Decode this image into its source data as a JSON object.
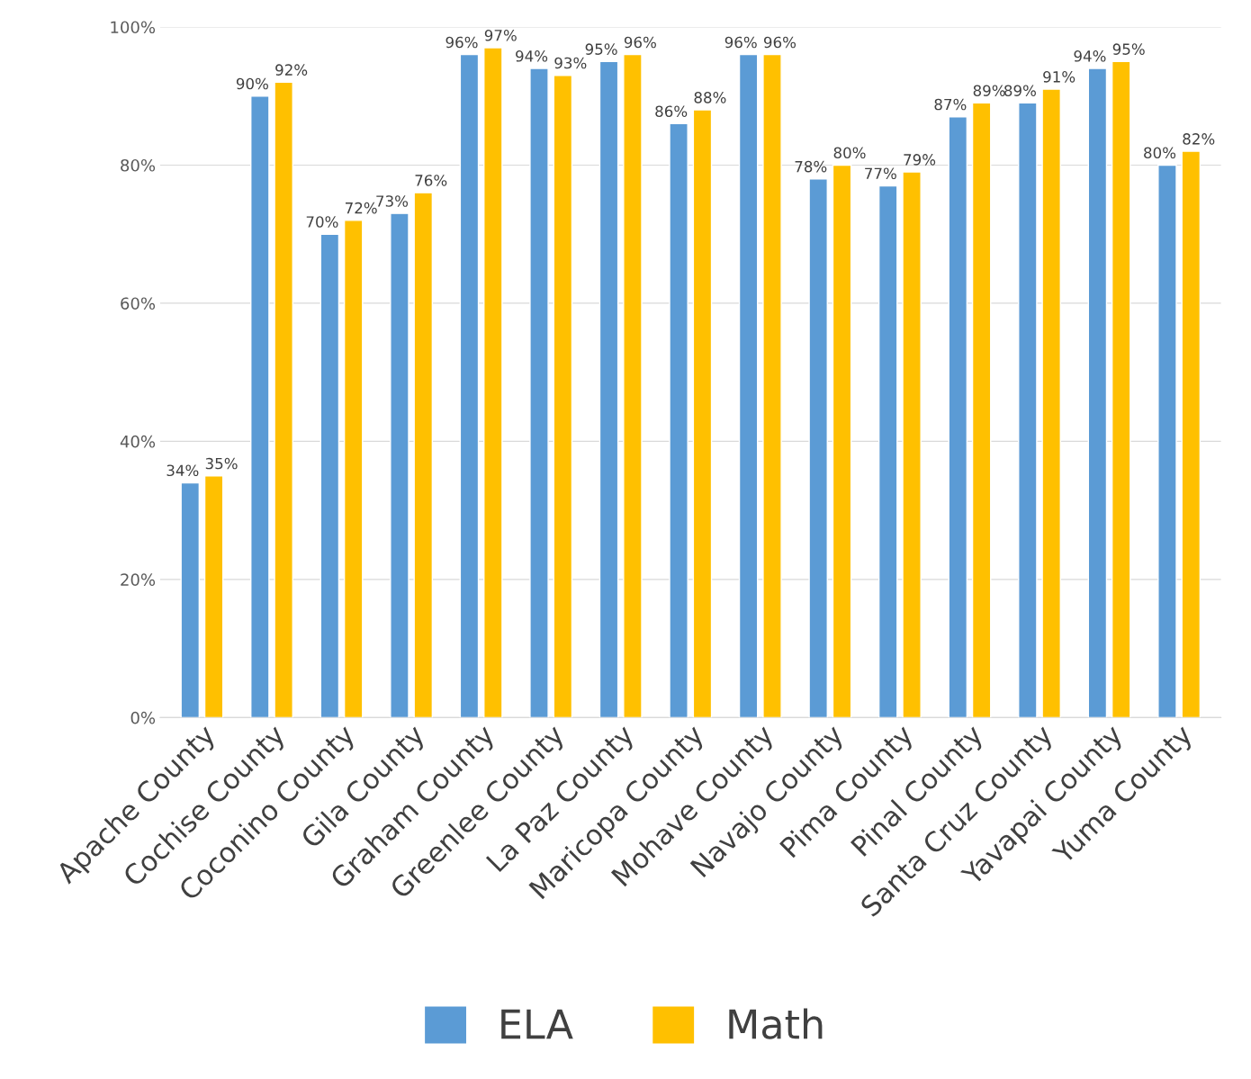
{
  "chart_data": {
    "type": "bar",
    "categories": [
      "Apache County",
      "Cochise County",
      "Coconino County",
      "Gila County",
      "Graham County",
      "Greenlee County",
      "La Paz County",
      "Maricopa County",
      "Mohave County",
      "Navajo County",
      "Pima County",
      "Pinal County",
      "Santa Cruz County",
      "Yavapai County",
      "Yuma County"
    ],
    "series": [
      {
        "name": "ELA",
        "color": "#5b9bd5",
        "values": [
          34,
          90,
          70,
          73,
          96,
          94,
          95,
          86,
          96,
          78,
          77,
          87,
          89,
          94,
          80
        ],
        "value_labels": [
          "34%",
          "90%",
          "70%",
          "73%",
          "96%",
          "94%",
          "95%",
          "86%",
          "96%",
          "78%",
          "77%",
          "87%",
          "89%",
          "94%",
          "80%"
        ]
      },
      {
        "name": "Math",
        "color": "#ffc000",
        "values": [
          35,
          92,
          72,
          76,
          97,
          93,
          96,
          88,
          96,
          80,
          79,
          89,
          91,
          95,
          82
        ],
        "value_labels": [
          "35%",
          "92%",
          "72%",
          "76%",
          "97%",
          "93%",
          "96%",
          "88%",
          "96%",
          "80%",
          "79%",
          "89%",
          "91%",
          "95%",
          "82%"
        ]
      }
    ],
    "ylim": [
      0,
      100
    ],
    "yticks": [
      {
        "value": 0,
        "label": "0%"
      },
      {
        "value": 20,
        "label": "20%"
      },
      {
        "value": 40,
        "label": "40%"
      },
      {
        "value": 60,
        "label": "60%"
      },
      {
        "value": 80,
        "label": "80%"
      },
      {
        "value": 100,
        "label": "100%"
      }
    ],
    "grid": "y",
    "legend": "bottom"
  }
}
